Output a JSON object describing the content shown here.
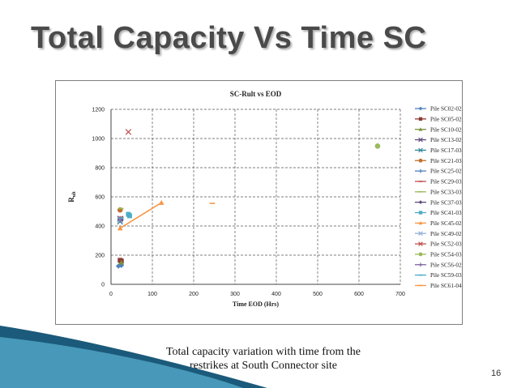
{
  "slide": {
    "title": "Total Capacity Vs Time SC",
    "caption_line1": "Total capacity variation with time from the",
    "caption_line2": "restrikes at South Connector site",
    "page_number": "16"
  },
  "colors": {
    "title": "#4a4a4a",
    "wave_dark": "#1b5a7a",
    "wave_light": "#4fa3c4"
  },
  "chart_data": {
    "type": "scatter",
    "title": "SC-Rult vs EOD",
    "xlabel": "Time EOD (Hrs)",
    "ylabel": "R",
    "ylabel_sub": "ult",
    "xlim": [
      0,
      700
    ],
    "ylim": [
      0,
      1200
    ],
    "xticks": [
      "0",
      "100",
      "200",
      "300",
      "400",
      "500",
      "600",
      "700"
    ],
    "yticks": [
      "0",
      "200",
      "400",
      "600",
      "800",
      "1000",
      "1200"
    ],
    "grid": true,
    "legend_position": "right",
    "series": [
      {
        "name": "Pile SC02-02",
        "color": "#4f81bd",
        "marker": "diamond",
        "points": [
          [
            18,
            125
          ],
          [
            25,
            130
          ]
        ]
      },
      {
        "name": "Pile SC05-02",
        "color": "#8c3b34",
        "marker": "square",
        "points": [
          [
            22,
            165
          ],
          [
            25,
            160
          ]
        ]
      },
      {
        "name": "Pile SC10-02",
        "color": "#77933c",
        "marker": "triangle",
        "points": [
          [
            25,
            150
          ]
        ]
      },
      {
        "name": "Pile SC13-02",
        "color": "#604a7b",
        "marker": "x",
        "points": [
          [
            22,
            450
          ]
        ]
      },
      {
        "name": "Pile SC17-03",
        "color": "#31859c",
        "marker": "x",
        "points": [
          [
            22,
            430
          ]
        ]
      },
      {
        "name": "Pile SC21-03",
        "color": "#c0712d",
        "marker": "circle",
        "points": [
          [
            22,
            510
          ]
        ]
      },
      {
        "name": "Pile SC25-02",
        "color": "#4f81bd",
        "marker": "plus",
        "points": [
          [
            24,
            445
          ]
        ]
      },
      {
        "name": "Pile SC29-03",
        "color": "#c0504d",
        "marker": "dash",
        "points": [
          [
            24,
            460
          ]
        ]
      },
      {
        "name": "Pile SC33-03",
        "color": "#9bbb59",
        "marker": "dash",
        "points": [
          [
            24,
            520
          ]
        ]
      },
      {
        "name": "Pile SC37-03",
        "color": "#604a7b",
        "marker": "diamond",
        "points": [
          [
            24,
            440
          ]
        ]
      },
      {
        "name": "Pile SC41-03",
        "color": "#4bacc6",
        "marker": "square",
        "points": [
          [
            42,
            480
          ],
          [
            45,
            470
          ]
        ]
      },
      {
        "name": "Pile SC45-02",
        "color": "#f79646",
        "marker": "triangle",
        "line": true,
        "points": [
          [
            22,
            385
          ],
          [
            122,
            560
          ]
        ]
      },
      {
        "name": "Pile SC49-02",
        "color": "#95b3d7",
        "marker": "x",
        "points": [
          [
            22,
            440
          ]
        ]
      },
      {
        "name": "Pile SC52-03",
        "color": "#c0504d",
        "marker": "x",
        "points": [
          [
            42,
            1045
          ]
        ]
      },
      {
        "name": "Pile SC54-03",
        "color": "#9bbb59",
        "marker": "circle",
        "points": [
          [
            645,
            948
          ]
        ]
      },
      {
        "name": "Pile SC56-02",
        "color": "#8064a2",
        "marker": "plus",
        "points": [
          [
            22,
            450
          ]
        ]
      },
      {
        "name": "Pile SC59-03",
        "color": "#4bacc6",
        "marker": "dash",
        "points": [
          [
            24,
            455
          ]
        ]
      },
      {
        "name": "Pile SC61-04",
        "color": "#f79646",
        "marker": "dash",
        "points": [
          [
            245,
            555
          ]
        ]
      }
    ]
  }
}
